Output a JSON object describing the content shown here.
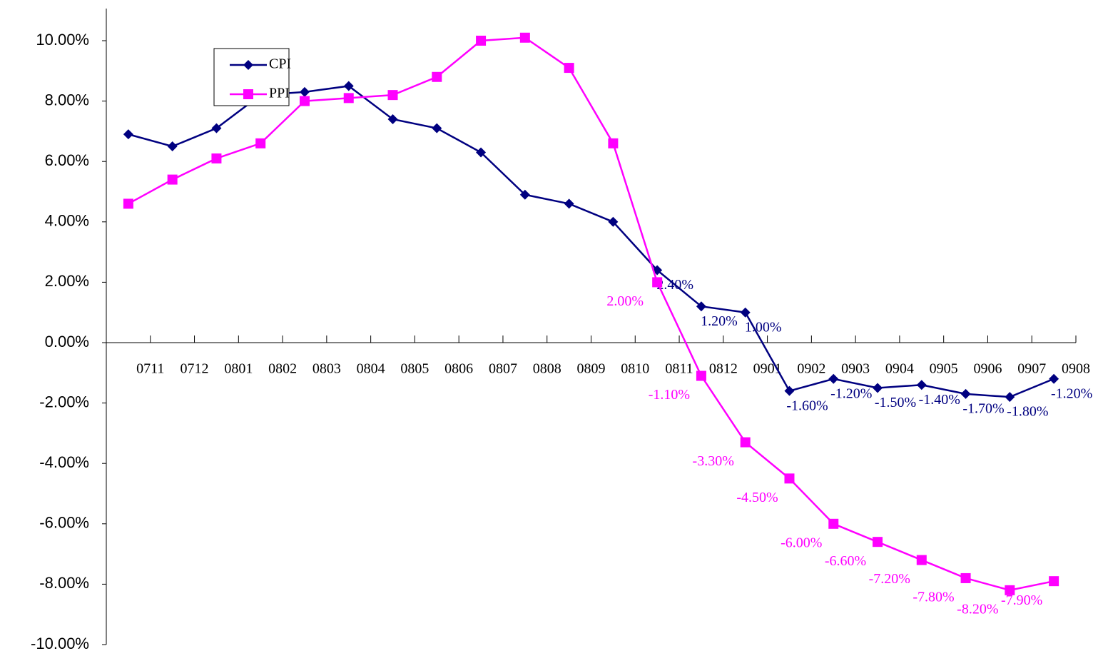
{
  "chart_data": {
    "type": "line",
    "categories": [
      "0711",
      "0712",
      "0801",
      "0802",
      "0803",
      "0804",
      "0805",
      "0806",
      "0807",
      "0808",
      "0809",
      "0810",
      "0811",
      "0812",
      "0901",
      "0902",
      "0903",
      "0904",
      "0905",
      "0906",
      "0907",
      "0908"
    ],
    "series": [
      {
        "name": "CPI",
        "color": "#000080",
        "marker": "diamond",
        "values": [
          6.9,
          6.5,
          7.1,
          8.2,
          8.3,
          8.5,
          7.4,
          7.1,
          6.3,
          4.9,
          4.6,
          4.0,
          2.4,
          1.2,
          1.0,
          -1.6,
          -1.2,
          -1.5,
          -1.4,
          -1.7,
          -1.8,
          -1.2
        ],
        "value_labels": [
          null,
          null,
          null,
          null,
          null,
          null,
          null,
          null,
          null,
          null,
          null,
          null,
          "2.40%",
          "1.20%",
          "1.00%",
          "-1.60%",
          "-1.20%",
          "-1.50%",
          "-1.40%",
          "-1.70%",
          "-1.80%",
          "-1.20%"
        ]
      },
      {
        "name": "PPI",
        "color": "#ff00ff",
        "marker": "square",
        "values": [
          4.6,
          5.4,
          6.1,
          6.6,
          8.0,
          8.1,
          8.2,
          8.8,
          10.0,
          10.1,
          9.1,
          6.6,
          2.0,
          -1.1,
          -3.3,
          -4.5,
          -6.0,
          -6.6,
          -7.2,
          -7.8,
          -8.2,
          -7.9
        ],
        "value_labels": [
          null,
          null,
          null,
          null,
          null,
          null,
          null,
          null,
          null,
          null,
          null,
          null,
          "2.00%",
          "-1.10%",
          "-3.30%",
          "-4.50%",
          "-6.00%",
          "-6.60%",
          "-7.20%",
          "-7.80%",
          "-8.20%",
          "-7.90%"
        ]
      }
    ],
    "ylim": [
      -10,
      10
    ],
    "yticks": [
      {
        "value": -10,
        "label": "-10.00%"
      },
      {
        "value": -8,
        "label": "-8.00%"
      },
      {
        "value": -6,
        "label": "-6.00%"
      },
      {
        "value": -4,
        "label": "-4.00%"
      },
      {
        "value": -2,
        "label": "-2.00%"
      },
      {
        "value": 0,
        "label": "0.00%"
      },
      {
        "value": 2,
        "label": "2.00%"
      },
      {
        "value": 4,
        "label": "4.00%"
      },
      {
        "value": 6,
        "label": "6.00%"
      },
      {
        "value": 8,
        "label": "8.00%"
      },
      {
        "value": 10,
        "label": "10.00%"
      }
    ]
  }
}
